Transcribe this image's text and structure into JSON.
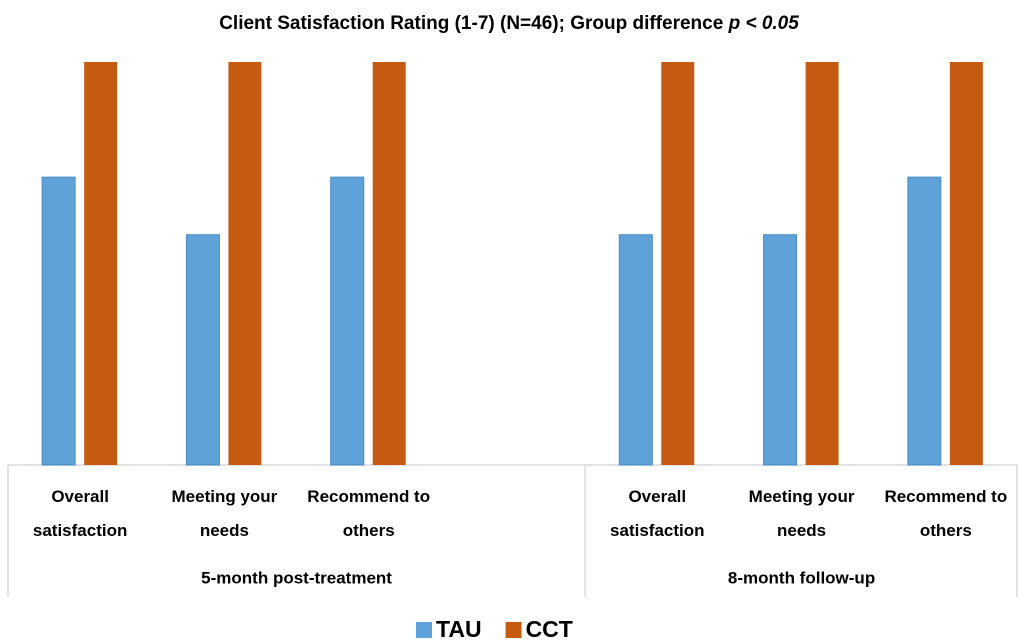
{
  "chart_data": {
    "type": "bar",
    "title": "Client Satisfaction Rating (1-7) (N=46); Group difference",
    "title_italic": "p < 0.05",
    "groups": [
      {
        "name": "5-month post-treatment",
        "categories": [
          "Overall satisfaction",
          "Meeting your needs",
          "Recommend to others",
          null
        ]
      },
      {
        "name": "8-month follow-up",
        "categories": [
          "Overall satisfaction",
          "Meeting your needs",
          "Recommend to others"
        ]
      }
    ],
    "series": [
      {
        "name": "TAU",
        "color": "#5fa2d9",
        "values": [
          5,
          4,
          5,
          null,
          4,
          4,
          5
        ]
      },
      {
        "name": "CCT",
        "color": "#c55a11",
        "values": [
          7,
          7,
          7,
          null,
          7,
          7,
          7
        ]
      }
    ],
    "ylim": [
      0,
      7
    ],
    "legend": "bottom"
  }
}
